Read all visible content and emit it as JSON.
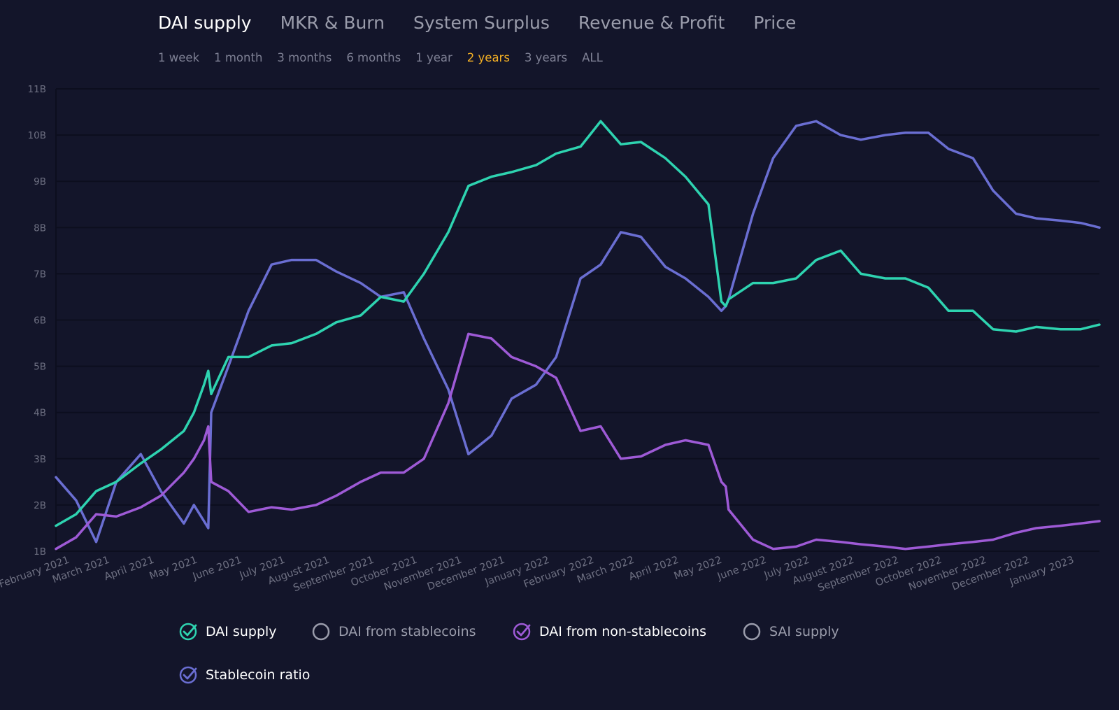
{
  "tabs": [
    {
      "label": "DAI supply",
      "active": true
    },
    {
      "label": "MKR & Burn",
      "active": false
    },
    {
      "label": "System Surplus",
      "active": false
    },
    {
      "label": "Revenue & Profit",
      "active": false
    },
    {
      "label": "Price",
      "active": false
    }
  ],
  "ranges": [
    {
      "label": "1 week",
      "active": false
    },
    {
      "label": "1 month",
      "active": false
    },
    {
      "label": "3 months",
      "active": false
    },
    {
      "label": "6 months",
      "active": false
    },
    {
      "label": "1 year",
      "active": false
    },
    {
      "label": "2 years",
      "active": true
    },
    {
      "label": "3 years",
      "active": false
    },
    {
      "label": "ALL",
      "active": false
    }
  ],
  "legend": [
    {
      "label": "DAI supply",
      "checked": true,
      "color": "#2ed3b0"
    },
    {
      "label": "DAI from stablecoins",
      "checked": false,
      "color": "#9a9cab"
    },
    {
      "label": "DAI from non-stablecoins",
      "checked": true,
      "color": "#9e5ad6"
    },
    {
      "label": "SAI supply",
      "checked": false,
      "color": "#9a9cab"
    },
    {
      "label": "Stablecoin ratio",
      "checked": true,
      "color": "#6a6ed2"
    }
  ],
  "chart_data": {
    "type": "line",
    "ylim": [
      1,
      11
    ],
    "y_ticks": [
      "1B",
      "2B",
      "3B",
      "4B",
      "5B",
      "6B",
      "7B",
      "8B",
      "9B",
      "10B",
      "11B"
    ],
    "x_ticks": [
      "February 2021",
      "March 2021",
      "April 2021",
      "May 2021",
      "June 2021",
      "July 2021",
      "August 2021",
      "September 2021",
      "October 2021",
      "November 2021",
      "December 2021",
      "January 2022",
      "February 2022",
      "March 2022",
      "April 2022",
      "May 2022",
      "June 2022",
      "July 2022",
      "August 2022",
      "September 2022",
      "October 2022",
      "November 2022",
      "December 2022",
      "January 2023"
    ],
    "x": [
      "2021-02-01",
      "2021-02-15",
      "2021-03-01",
      "2021-03-15",
      "2021-04-01",
      "2021-04-15",
      "2021-05-01",
      "2021-05-08",
      "2021-05-15",
      "2021-05-18",
      "2021-05-20",
      "2021-06-01",
      "2021-06-15",
      "2021-07-01",
      "2021-07-15",
      "2021-08-01",
      "2021-08-15",
      "2021-09-01",
      "2021-09-15",
      "2021-10-01",
      "2021-10-15",
      "2021-11-01",
      "2021-11-15",
      "2021-12-01",
      "2021-12-15",
      "2022-01-01",
      "2022-01-15",
      "2022-02-01",
      "2022-02-15",
      "2022-03-01",
      "2022-03-15",
      "2022-04-01",
      "2022-04-15",
      "2022-05-01",
      "2022-05-10",
      "2022-05-13",
      "2022-05-15",
      "2022-06-01",
      "2022-06-15",
      "2022-07-01",
      "2022-07-15",
      "2022-08-01",
      "2022-08-15",
      "2022-09-01",
      "2022-09-15",
      "2022-10-01",
      "2022-10-15",
      "2022-11-01",
      "2022-11-15",
      "2022-12-01",
      "2022-12-15",
      "2023-01-01",
      "2023-01-15",
      "2023-01-28"
    ],
    "series": [
      {
        "name": "DAI supply",
        "color": "#2ed3b0",
        "values": [
          1.55,
          1.8,
          2.3,
          2.5,
          2.9,
          3.2,
          3.6,
          4.0,
          4.6,
          4.9,
          4.4,
          5.2,
          5.2,
          5.45,
          5.5,
          5.7,
          5.95,
          6.1,
          6.5,
          6.4,
          7.0,
          7.9,
          8.9,
          9.1,
          9.2,
          9.35,
          9.6,
          9.75,
          10.3,
          9.8,
          9.85,
          9.5,
          9.1,
          8.5,
          6.4,
          6.3,
          6.45,
          6.8,
          6.8,
          6.9,
          7.3,
          7.5,
          7.0,
          6.9,
          6.9,
          6.7,
          6.2,
          6.2,
          5.8,
          5.75,
          5.85,
          5.8,
          5.8,
          5.9
        ]
      },
      {
        "name": "DAI from non-stablecoins",
        "color": "#9e5ad6",
        "values": [
          1.05,
          1.3,
          1.8,
          1.75,
          1.95,
          2.2,
          2.7,
          3.0,
          3.4,
          3.7,
          2.5,
          2.3,
          1.85,
          1.95,
          1.9,
          2.0,
          2.2,
          2.5,
          2.7,
          2.7,
          3.0,
          4.2,
          5.7,
          5.6,
          5.2,
          5.0,
          4.75,
          3.6,
          3.7,
          3.0,
          3.05,
          3.3,
          3.4,
          3.3,
          2.5,
          2.4,
          1.9,
          1.25,
          1.05,
          1.1,
          1.25,
          1.2,
          1.15,
          1.1,
          1.05,
          1.1,
          1.15,
          1.2,
          1.25,
          1.4,
          1.5,
          1.55,
          1.6,
          1.65
        ]
      },
      {
        "name": "Stablecoin ratio",
        "color": "#6a6ed2",
        "values": [
          2.6,
          2.1,
          1.2,
          2.5,
          3.1,
          2.3,
          1.6,
          2.0,
          1.65,
          1.5,
          4.0,
          5.0,
          6.2,
          7.2,
          7.3,
          7.3,
          7.05,
          6.8,
          6.5,
          6.6,
          5.6,
          4.5,
          3.1,
          3.5,
          4.3,
          4.6,
          5.2,
          6.9,
          7.2,
          7.9,
          7.8,
          7.15,
          6.9,
          6.5,
          6.2,
          6.3,
          6.45,
          8.3,
          9.5,
          10.2,
          10.3,
          10.0,
          9.9,
          10.0,
          10.05,
          10.05,
          9.7,
          9.5,
          8.8,
          8.3,
          8.2,
          8.15,
          8.1,
          8.0
        ]
      }
    ]
  }
}
